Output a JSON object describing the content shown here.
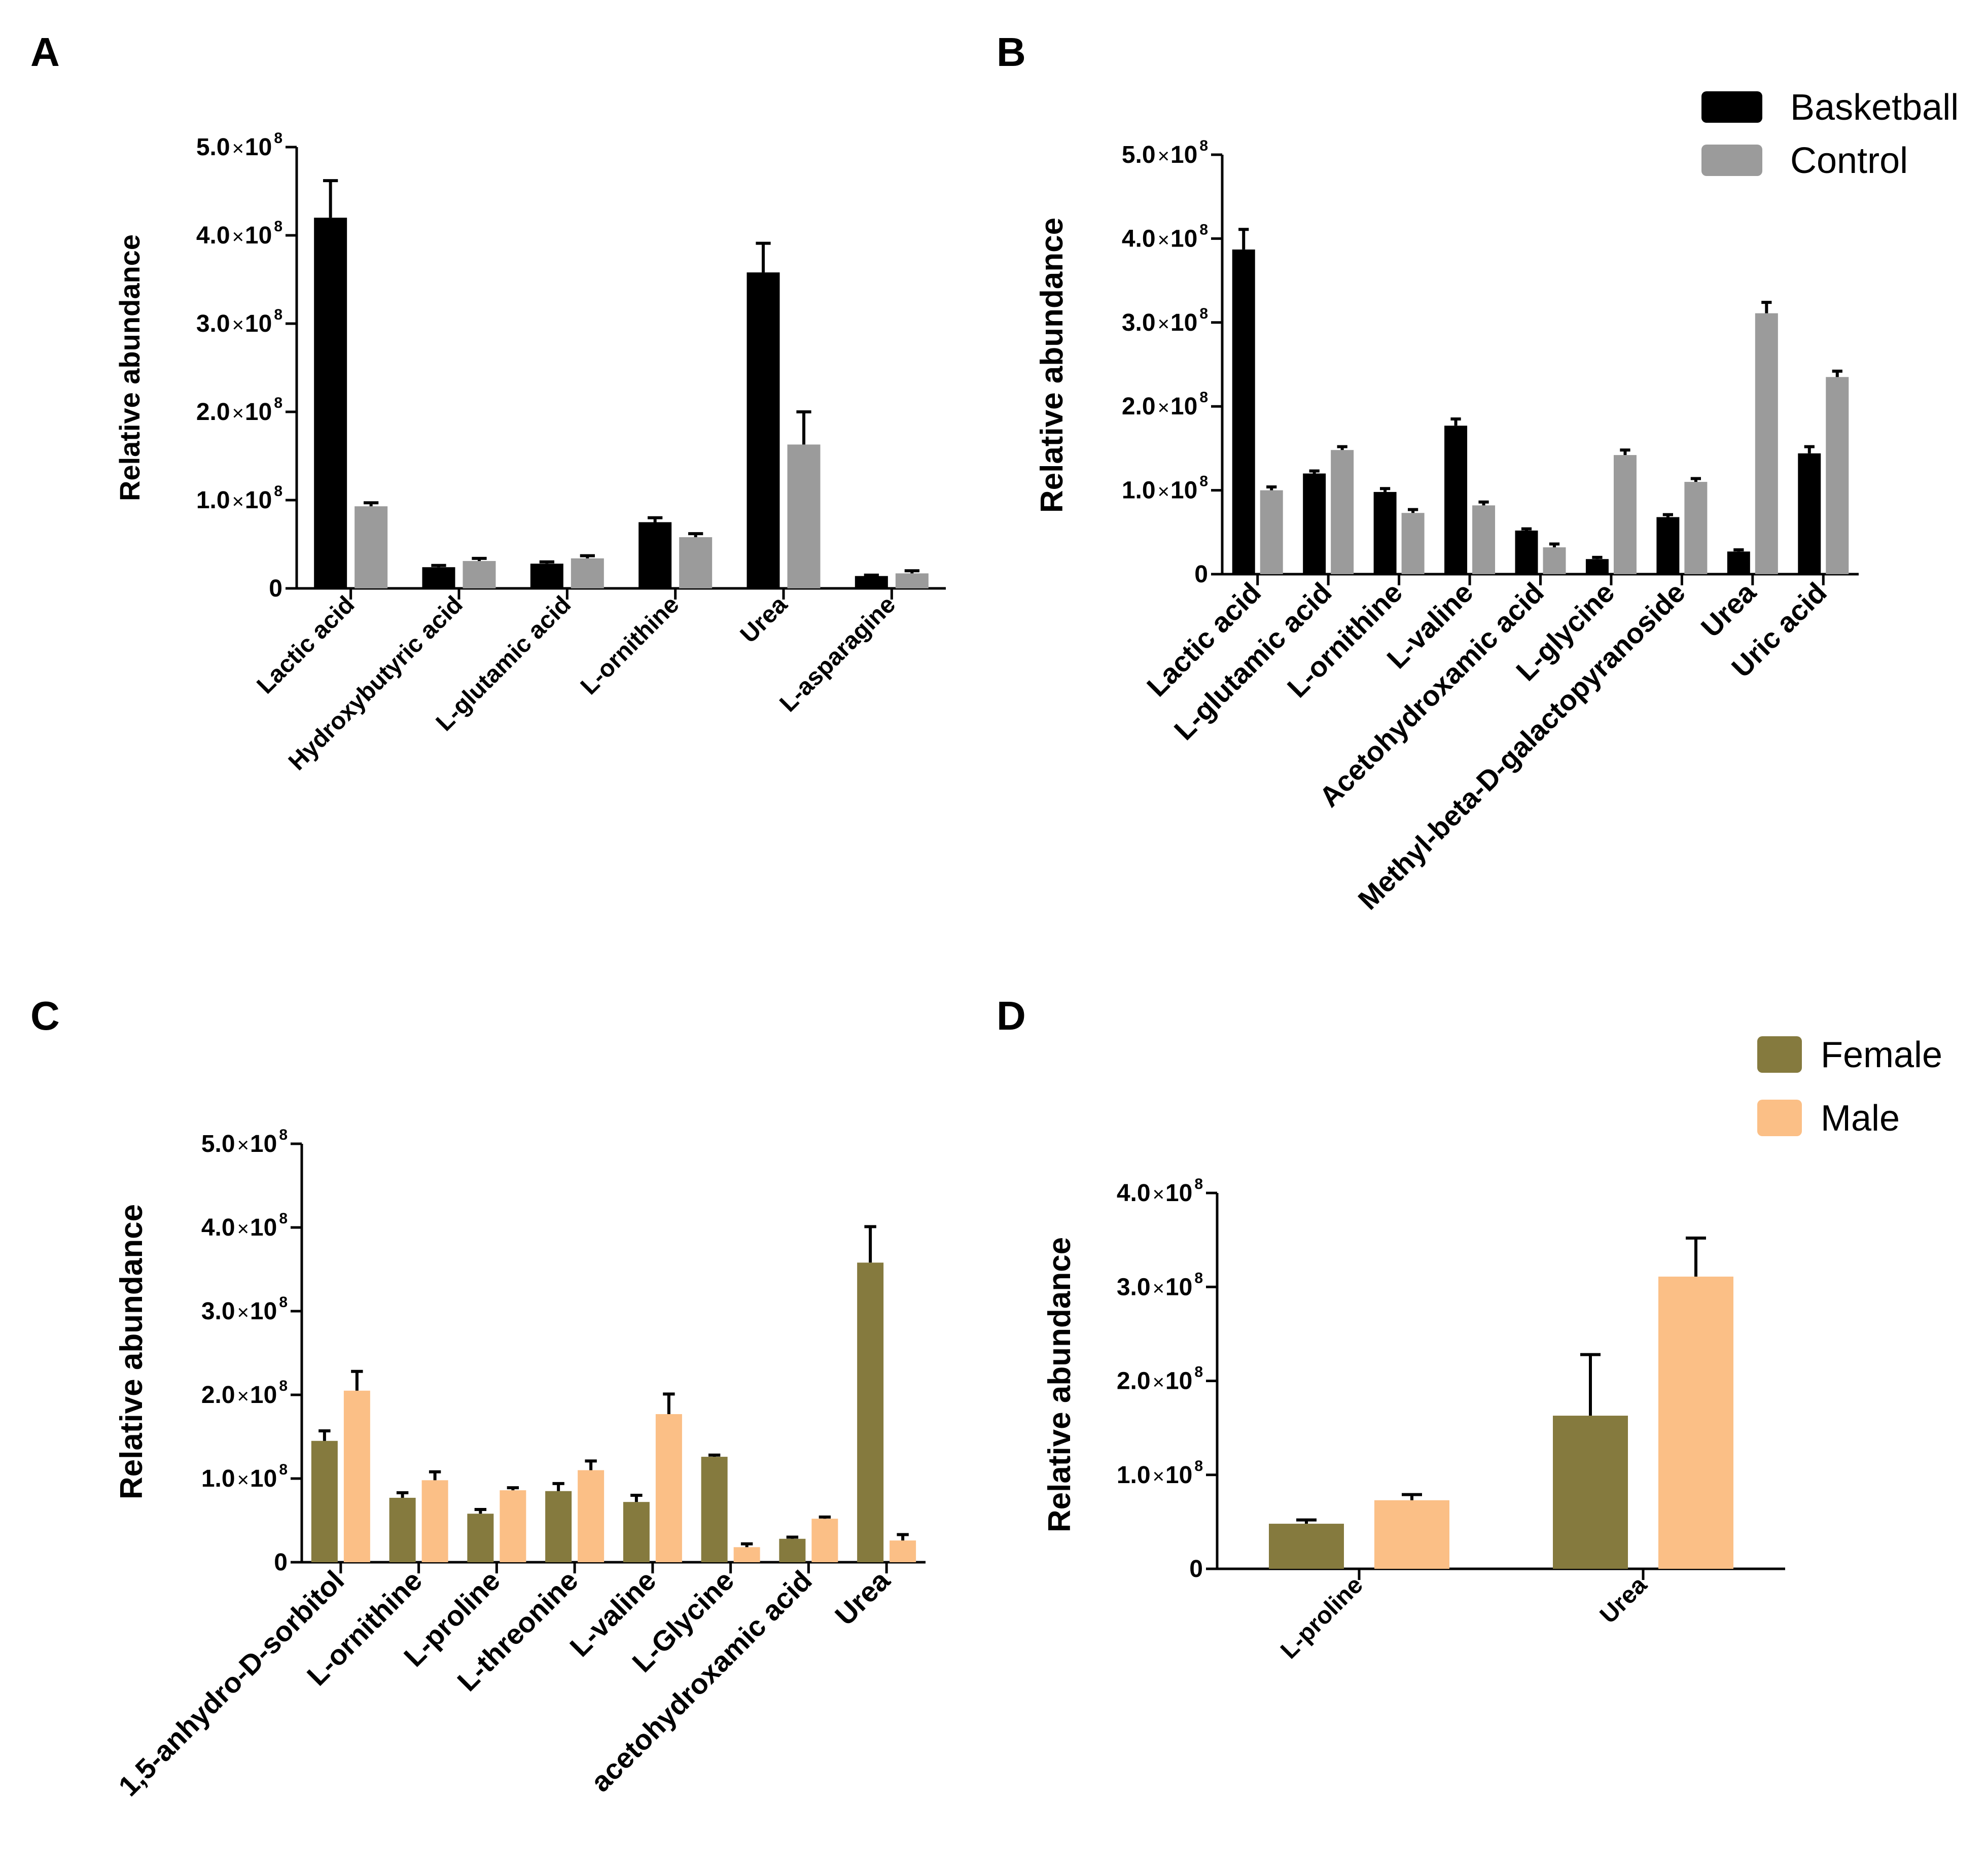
{
  "chart_data": [
    {
      "id": "A",
      "panel_label": "A",
      "type": "bar",
      "ylabel": "Relative abundance",
      "ylim": [
        0,
        500000000
      ],
      "yticks": [
        {
          "value": 0,
          "mantissa": "0",
          "exp": ""
        },
        {
          "value": 100000000,
          "mantissa": "1.0",
          "exp": "8"
        },
        {
          "value": 200000000,
          "mantissa": "2.0",
          "exp": "8"
        },
        {
          "value": 300000000,
          "mantissa": "3.0",
          "exp": "8"
        },
        {
          "value": 400000000,
          "mantissa": "4.0",
          "exp": "8"
        },
        {
          "value": 500000000,
          "mantissa": "5.0",
          "exp": "8"
        }
      ],
      "categories": [
        "Lactic acid",
        "Hydroxybutyric acid",
        "L-glutamic acid",
        "L-ornithine",
        "Urea",
        "L-asparagine"
      ],
      "series": [
        {
          "name": "Basketball",
          "color": "#000000",
          "values": [
            420000000,
            24000000,
            28000000,
            75000000,
            358000000,
            14000000
          ],
          "errors": [
            42000000,
            2000000,
            2000000,
            5000000,
            33000000,
            1000000
          ]
        },
        {
          "name": "Control",
          "color": "#9b9b9b",
          "values": [
            93000000,
            31000000,
            34000000,
            58000000,
            163000000,
            17000000
          ],
          "errors": [
            4000000,
            3000000,
            3000000,
            4000000,
            37000000,
            3000000
          ]
        }
      ]
    },
    {
      "id": "B",
      "panel_label": "B",
      "type": "bar",
      "ylabel": "Relative abundance",
      "ylim": [
        0,
        500000000
      ],
      "yticks": [
        {
          "value": 0,
          "mantissa": "0",
          "exp": ""
        },
        {
          "value": 100000000,
          "mantissa": "1.0",
          "exp": "8"
        },
        {
          "value": 200000000,
          "mantissa": "2.0",
          "exp": "8"
        },
        {
          "value": 300000000,
          "mantissa": "3.0",
          "exp": "8"
        },
        {
          "value": 400000000,
          "mantissa": "4.0",
          "exp": "8"
        },
        {
          "value": 500000000,
          "mantissa": "5.0",
          "exp": "8"
        }
      ],
      "categories": [
        "Lactic acid",
        "L-glutamic acid",
        "L-ornithine",
        "L-valine",
        "Acetohydroxamic acid",
        "L-glycine",
        "Methyl-beta-D-galactopyranoside",
        "Urea",
        "Uric acid"
      ],
      "legend": [
        {
          "label": "Basketball",
          "color": "#000000"
        },
        {
          "label": "Control",
          "color": "#9b9b9b"
        }
      ],
      "series": [
        {
          "name": "Basketball",
          "color": "#000000",
          "values": [
            387000000,
            120000000,
            98000000,
            177000000,
            52000000,
            18000000,
            68000000,
            27000000,
            144000000
          ],
          "errors": [
            24000000,
            3000000,
            4000000,
            8000000,
            2000000,
            2000000,
            3000000,
            2000000,
            8000000
          ],
          "err_fill": [
            0,
            0,
            0,
            0,
            0,
            0,
            0,
            0,
            0
          ]
        },
        {
          "name": "Control",
          "color": "#9b9b9b",
          "values": [
            100000000,
            148000000,
            73000000,
            82000000,
            32000000,
            142000000,
            110000000,
            311000000,
            235000000
          ],
          "errors": [
            4000000,
            4000000,
            4000000,
            4000000,
            4000000,
            6000000,
            4000000,
            13000000,
            7000000
          ]
        }
      ]
    },
    {
      "id": "C",
      "panel_label": "C",
      "type": "bar",
      "ylabel": "Relative abundance",
      "ylim": [
        0,
        500000000
      ],
      "yticks": [
        {
          "value": 0,
          "mantissa": "0",
          "exp": ""
        },
        {
          "value": 100000000,
          "mantissa": "1.0",
          "exp": "8"
        },
        {
          "value": 200000000,
          "mantissa": "2.0",
          "exp": "8"
        },
        {
          "value": 300000000,
          "mantissa": "3.0",
          "exp": "8"
        },
        {
          "value": 400000000,
          "mantissa": "4.0",
          "exp": "8"
        },
        {
          "value": 500000000,
          "mantissa": "5.0",
          "exp": "8"
        }
      ],
      "categories": [
        "1,5-anhydro-D-sorbitol",
        "L-ornithine",
        "L-proline",
        "L-threonine",
        "L-valine",
        "L-Glycine",
        "acetohydroxamic acid",
        "Urea"
      ],
      "series": [
        {
          "name": "Female",
          "color": "#857a3e",
          "values": [
            145000000,
            77000000,
            58000000,
            85000000,
            72000000,
            126000000,
            28000000,
            358000000
          ],
          "errors": [
            12000000,
            6000000,
            5000000,
            9000000,
            8000000,
            2000000,
            2000000,
            43000000
          ]
        },
        {
          "name": "Male",
          "color": "#fbbf86",
          "values": [
            205000000,
            98000000,
            86000000,
            110000000,
            177000000,
            18000000,
            52000000,
            26000000
          ],
          "errors": [
            23000000,
            10000000,
            3000000,
            11000000,
            24000000,
            4000000,
            2000000,
            7000000
          ]
        }
      ]
    },
    {
      "id": "D",
      "panel_label": "D",
      "type": "bar",
      "ylabel": "Relative abundance",
      "ylim": [
        0,
        400000000
      ],
      "yticks": [
        {
          "value": 0,
          "mantissa": "0",
          "exp": ""
        },
        {
          "value": 100000000,
          "mantissa": "1.0",
          "exp": "8"
        },
        {
          "value": 200000000,
          "mantissa": "2.0",
          "exp": "8"
        },
        {
          "value": 300000000,
          "mantissa": "3.0",
          "exp": "8"
        },
        {
          "value": 400000000,
          "mantissa": "4.0",
          "exp": "8"
        }
      ],
      "categories": [
        "L-proline",
        "Urea"
      ],
      "legend": [
        {
          "label": "Female",
          "color": "#857a3e"
        },
        {
          "label": "Male",
          "color": "#fbbf86"
        }
      ],
      "series": [
        {
          "name": "Female",
          "color": "#857a3e",
          "values": [
            48000000,
            163000000
          ],
          "errors": [
            4000000,
            65000000
          ]
        },
        {
          "name": "Male",
          "color": "#fbbf86",
          "values": [
            73000000,
            311000000
          ],
          "errors": [
            6000000,
            41000000
          ]
        }
      ]
    }
  ]
}
